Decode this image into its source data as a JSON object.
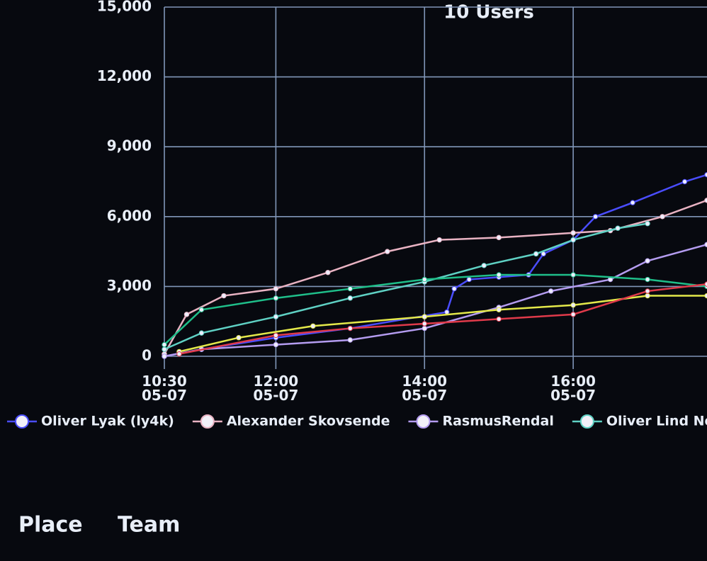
{
  "chart_data": {
    "type": "line",
    "title": "10 Users",
    "xlim": [
      10.5,
      17.8
    ],
    "ylim": [
      0,
      15000
    ],
    "xticks": [
      {
        "value": 10.5,
        "label": "10:30\n05-07"
      },
      {
        "value": 12,
        "label": "12:00\n05-07"
      },
      {
        "value": 14,
        "label": "14:00\n05-07"
      },
      {
        "value": 16,
        "label": "16:00\n05-07"
      }
    ],
    "yticks": [
      0,
      {
        "value": 3000,
        "label": "3,000"
      },
      {
        "value": 6000,
        "label": "6,000"
      },
      {
        "value": 9000,
        "label": "9,000"
      },
      {
        "value": 12000,
        "label": "12,000"
      },
      {
        "value": 15000,
        "label": "15,000"
      }
    ],
    "grid": true,
    "series": [
      {
        "name": "Oliver Lyak (ly4k)",
        "color": "#4a4dff",
        "x": [
          10.5,
          11,
          12,
          13,
          14.3,
          14.4,
          14.6,
          15,
          15.4,
          15.6,
          16,
          16.3,
          16.8,
          17.5,
          17.8
        ],
        "values": [
          0,
          300,
          800,
          1200,
          1900,
          2900,
          3300,
          3400,
          3500,
          4400,
          5000,
          6000,
          6600,
          7500,
          7800
        ]
      },
      {
        "name": "Alexander Skovsende",
        "color": "#e9b3c3",
        "x": [
          10.5,
          10.8,
          11.3,
          12,
          12.7,
          13.5,
          14.2,
          15,
          16,
          16.5,
          17.2,
          17.8
        ],
        "values": [
          100,
          1800,
          2600,
          2900,
          3600,
          4500,
          5000,
          5100,
          5300,
          5400,
          6000,
          6700
        ]
      },
      {
        "name": "RasmusRendal",
        "color": "#b49cf0",
        "x": [
          10.5,
          11,
          12,
          13,
          14,
          15,
          15.7,
          16.5,
          17,
          17.8
        ],
        "values": [
          0,
          300,
          500,
          700,
          1200,
          2100,
          2800,
          3300,
          4100,
          4800
        ]
      },
      {
        "name": "Oliver Lind Nordest",
        "color": "#5fd1c4",
        "x": [
          10.5,
          11,
          12,
          13,
          14,
          14.8,
          15.5,
          16,
          16.6,
          17
        ],
        "values": [
          300,
          1000,
          1700,
          2500,
          3200,
          3900,
          4400,
          5000,
          5500,
          5700
        ]
      },
      {
        "color": "#1fbf8a",
        "x": [
          10.5,
          11,
          12,
          13,
          14,
          15,
          16,
          17,
          17.8
        ],
        "values": [
          500,
          2000,
          2500,
          2900,
          3300,
          3500,
          3500,
          3300,
          3000
        ]
      },
      {
        "color": "#e4e94a",
        "x": [
          10.7,
          11.5,
          12.5,
          14,
          15,
          16,
          17,
          17.8
        ],
        "values": [
          200,
          800,
          1300,
          1700,
          2000,
          2200,
          2600,
          2600
        ]
      },
      {
        "color": "#e03a4a",
        "x": [
          10.7,
          12,
          13,
          14,
          15,
          16,
          17,
          17.8
        ],
        "values": [
          100,
          900,
          1200,
          1400,
          1600,
          1800,
          2800,
          3100
        ]
      }
    ]
  },
  "table_headers": [
    "Place",
    "Team"
  ]
}
